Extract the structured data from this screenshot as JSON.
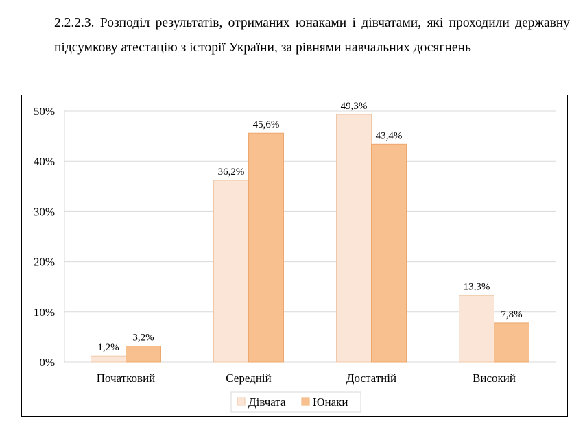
{
  "caption": "2.2.2.3. Розподіл результатів, отриманих юнаками і дівчатами, які проходили державну підсумкову атестацію з історії України, за рівнями навчальних досягнень",
  "chart_data": {
    "type": "bar",
    "title": "",
    "xlabel": "",
    "ylabel": "",
    "categories": [
      "Початковий",
      "Середній",
      "Достатній",
      "Високий"
    ],
    "series": [
      {
        "name": "Дівчата",
        "values": [
          1.2,
          36.2,
          49.3,
          13.3
        ],
        "labels": [
          "1,2%",
          "36,2%",
          "49,3%",
          "13,3%"
        ],
        "color": "#fbe5d6",
        "stroke": "#f0c8a8"
      },
      {
        "name": "Юнаки",
        "values": [
          3.2,
          45.6,
          43.4,
          7.8
        ],
        "labels": [
          "3,2%",
          "45,6%",
          "43,4%",
          "7,8%"
        ],
        "color": "#f8bf8f",
        "stroke": "#eea86e"
      }
    ],
    "ylim": [
      0,
      50
    ],
    "yticks": [
      0,
      10,
      20,
      30,
      40,
      50
    ],
    "ytick_labels": [
      "0%",
      "10%",
      "20%",
      "30%",
      "40%",
      "50%"
    ],
    "grid": true,
    "gridline_color": "#d9d9d9",
    "legend_position": "bottom"
  }
}
